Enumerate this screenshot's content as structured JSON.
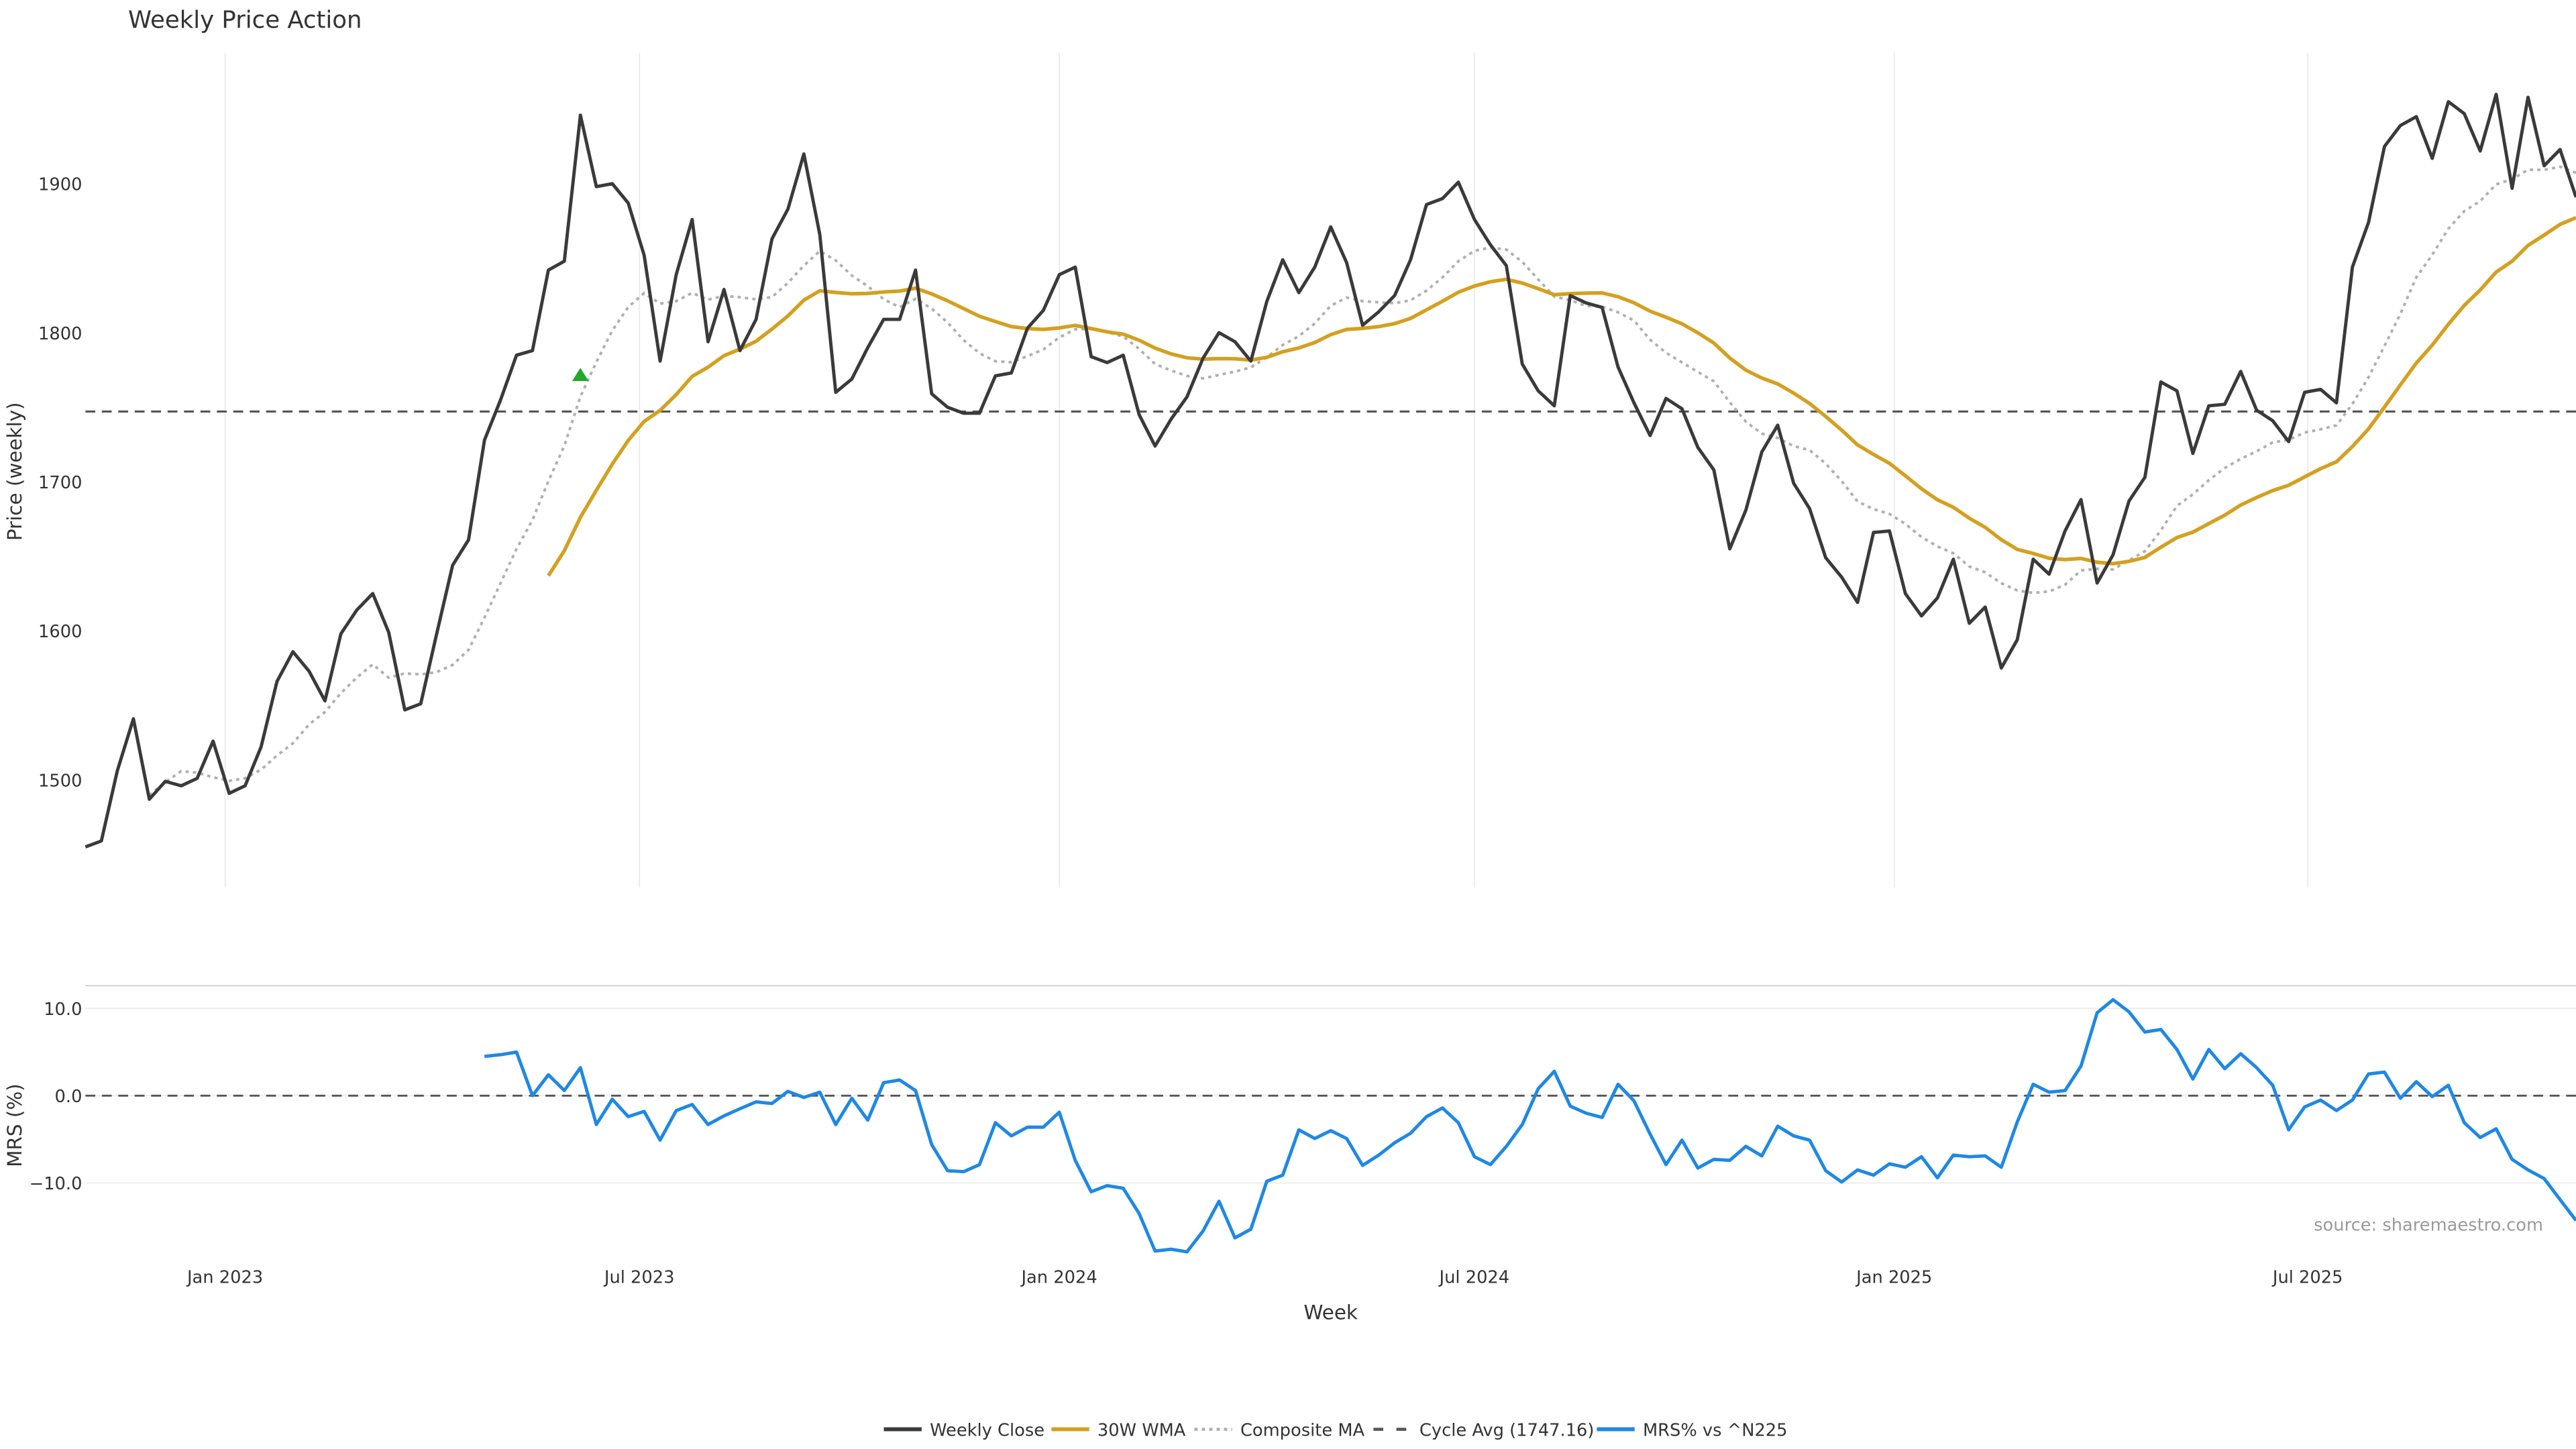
{
  "chart_data": {
    "type": "line",
    "title": "Weekly Price Action",
    "xlabel": "Week",
    "source": "source: sharemaestro.com",
    "x_ticks": [
      {
        "label": "Jan 2023",
        "week": 8.75
      },
      {
        "label": "Jul 2023",
        "week": 34.7
      },
      {
        "label": "Jan 2024",
        "week": 61
      },
      {
        "label": "Jul 2024",
        "week": 87
      },
      {
        "label": "Jan 2025",
        "week": 113.3
      },
      {
        "label": "Jul 2025",
        "week": 139.2
      }
    ],
    "price_panel": {
      "ylabel": "Price (weekly)",
      "ylim": [
        1428,
        1988
      ],
      "y_ticks": [
        {
          "label": "1500",
          "value": 1500
        },
        {
          "label": "1600",
          "value": 1600
        },
        {
          "label": "1700",
          "value": 1700
        },
        {
          "label": "1800",
          "value": 1800
        },
        {
          "label": "1900",
          "value": 1900
        }
      ],
      "close": [
        1455,
        1459,
        1506,
        1541,
        1487,
        1499,
        1496,
        1501,
        1526,
        1491,
        1496,
        1522,
        1566,
        1586,
        1573,
        1553,
        1598,
        1614,
        1625,
        1599,
        1547,
        1551,
        1598,
        1644,
        1661,
        1728,
        1755,
        1785,
        1788,
        1842,
        1848,
        1946,
        1898,
        1900,
        1887,
        1852,
        1781,
        1839,
        1876,
        1794,
        1829,
        1788,
        1809,
        1863,
        1883,
        1920,
        1866,
        1760,
        1769,
        1790,
        1809,
        1809,
        1842,
        1759,
        1750,
        1746,
        1746,
        1771,
        1773,
        1803,
        1815,
        1839,
        1844,
        1784,
        1780,
        1785,
        1745,
        1724,
        1742,
        1757,
        1783,
        1800,
        1794,
        1781,
        1821,
        1849,
        1827,
        1844,
        1871,
        1847,
        1805,
        1814,
        1825,
        1849,
        1886,
        1890,
        1901,
        1876,
        1859,
        1845,
        1779,
        1761,
        1751,
        1825,
        1820,
        1817,
        1777,
        1753,
        1731,
        1756,
        1749,
        1723,
        1708,
        1655,
        1681,
        1720,
        1738,
        1699,
        1682,
        1649,
        1636,
        1619,
        1666,
        1667,
        1625,
        1610,
        1622,
        1648,
        1605,
        1616,
        1575,
        1594,
        1648,
        1638,
        1667,
        1688,
        1632,
        1651,
        1687,
        1703,
        1767,
        1761,
        1719,
        1751,
        1752,
        1774,
        1748,
        1741,
        1727,
        1760,
        1762,
        1753,
        1844,
        1874,
        1925,
        1939,
        1945,
        1917,
        1955,
        1947,
        1922,
        1960,
        1897,
        1958,
        1912,
        1923,
        1891
      ],
      "wma_period": 30,
      "composite_periods": [
        5,
        10,
        20
      ],
      "cycle_avg": 1747.16,
      "signal_markers": [
        {
          "week": 31,
          "value": 1772,
          "color": "#22a82a"
        }
      ]
    },
    "mrs_panel": {
      "ylabel": "MRS (%)",
      "ylim": [
        -19.4,
        12.6
      ],
      "y_ticks": [
        {
          "label": "10.0",
          "value": 10
        },
        {
          "label": "0.0",
          "value": 0
        },
        {
          "label": "−10.0",
          "value": -10
        }
      ],
      "zero_line": 0,
      "mrs": [
        4.5,
        4.7,
        5.0,
        0,
        2.4,
        0.6,
        3.2,
        -3.3,
        -0.4,
        -2.4,
        -1.8,
        -5.1,
        -1.7,
        -1.0,
        -3.3,
        -2.3,
        -1.5,
        -0.7,
        -0.9,
        0.5,
        -0.2,
        0.4,
        -3.3,
        -0.3,
        -2.8,
        1.5,
        1.8,
        0.6,
        -5.6,
        -8.6,
        -8.7,
        -7.9,
        -3.1,
        -4.6,
        -3.6,
        -3.6,
        -1.9,
        -7.4,
        -11.0,
        -10.3,
        -10.6,
        -13.5,
        -17.8,
        -17.6,
        -17.9,
        -15.5,
        -12.1,
        -16.3,
        -15.3,
        -9.8,
        -9.1,
        -3.9,
        -4.9,
        -4.0,
        -4.9,
        -8.0,
        -6.8,
        -5.4,
        -4.3,
        -2.4,
        -1.4,
        -3.1,
        -7.0,
        -7.9,
        -5.8,
        -3.3,
        0.8,
        2.8,
        -1.2,
        -2.0,
        -2.5,
        1.3,
        -0.6,
        -4.4,
        -7.9,
        -5.1,
        -8.3,
        -7.3,
        -7.4,
        -5.8,
        -6.9,
        -3.5,
        -4.6,
        -5.1,
        -8.6,
        -9.9,
        -8.5,
        -9.1,
        -7.8,
        -8.2,
        -7.0,
        -9.4,
        -6.8,
        -7.0,
        -6.9,
        -8.2,
        -3.0,
        1.3,
        0.4,
        0.6,
        3.4,
        9.5,
        11.0,
        9.6,
        7.3,
        7.6,
        5.3,
        1.9,
        5.3,
        3.1,
        4.8,
        3.2,
        1.2,
        -3.9,
        -1.3,
        -0.5,
        -1.7,
        -0.5,
        2.5,
        2.7,
        -0.3,
        1.6,
        -0.1,
        1.2,
        -3.1,
        -4.8,
        -3.8,
        -7.3,
        -8.5,
        -9.5,
        -11.9,
        -14.3
      ]
    },
    "legend": {
      "placement": "bottom-center",
      "entries": [
        {
          "label": "Weekly Close",
          "color": "#3a3a3a",
          "style": "solid"
        },
        {
          "label": "30W WMA",
          "color": "#d4a020",
          "style": "solid"
        },
        {
          "label": "Composite MA",
          "color": "#b0b0b0",
          "style": "dotted"
        },
        {
          "label": "Cycle Avg (1747.16)",
          "color": "#555555",
          "style": "dashed"
        },
        {
          "label": "MRS% vs ^N225",
          "color": "#1e88e5",
          "style": "solid"
        }
      ]
    }
  }
}
